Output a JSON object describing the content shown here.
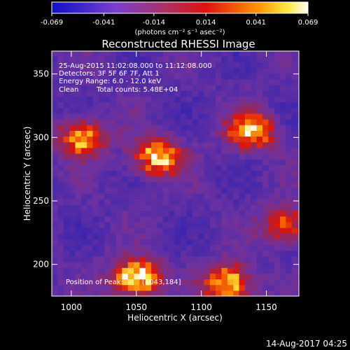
{
  "colorbar": {
    "ticks": [
      "-0.069",
      "-0.041",
      "-0.014",
      "0.014",
      "0.041",
      "0.069"
    ],
    "tick_values": [
      -0.069,
      -0.041,
      -0.014,
      0.014,
      0.041,
      0.069
    ],
    "range": [
      -0.069,
      0.069
    ],
    "unit_label": "(photons cm⁻² s⁻¹ asec⁻²)"
  },
  "chart_data": {
    "type": "heatmap",
    "title": "Reconstructed RHESSI Image",
    "xlabel": "Heliocentric X (arcsec)",
    "ylabel": "Heliocentric Y (arcsec)",
    "xlim": [
      985,
      1175
    ],
    "ylim": [
      175,
      368
    ],
    "xticks": [
      1000,
      1050,
      1100,
      1150
    ],
    "yticks": [
      200,
      250,
      300,
      350
    ],
    "colormap": "blue-purple-red-orange-yellow-white",
    "annotations": [
      "25-Aug-2015 11:02:08.000 to 11:12:08.000",
      "Detectors: 3F 5F 6F 7F, Att 1",
      "Energy Range: 6.0 - 12.0 keV"
    ],
    "method": "Clean",
    "total_counts": "Total counts: 5.48E+04",
    "peak_label": "Position of Peak:",
    "peak_position": "[1043,184]",
    "peak": [
      1043,
      184
    ],
    "bright_regions": [
      {
        "x": 1008,
        "y": 300,
        "level": 0.75
      },
      {
        "x": 1066,
        "y": 285,
        "level": 0.9
      },
      {
        "x": 1138,
        "y": 305,
        "level": 0.85
      },
      {
        "x": 1050,
        "y": 190,
        "level": 1.0
      },
      {
        "x": 1120,
        "y": 185,
        "level": 0.9
      },
      {
        "x": 1165,
        "y": 232,
        "level": 0.6
      }
    ]
  },
  "footer": {
    "timestamp": "14-Aug-2017 04:25"
  }
}
